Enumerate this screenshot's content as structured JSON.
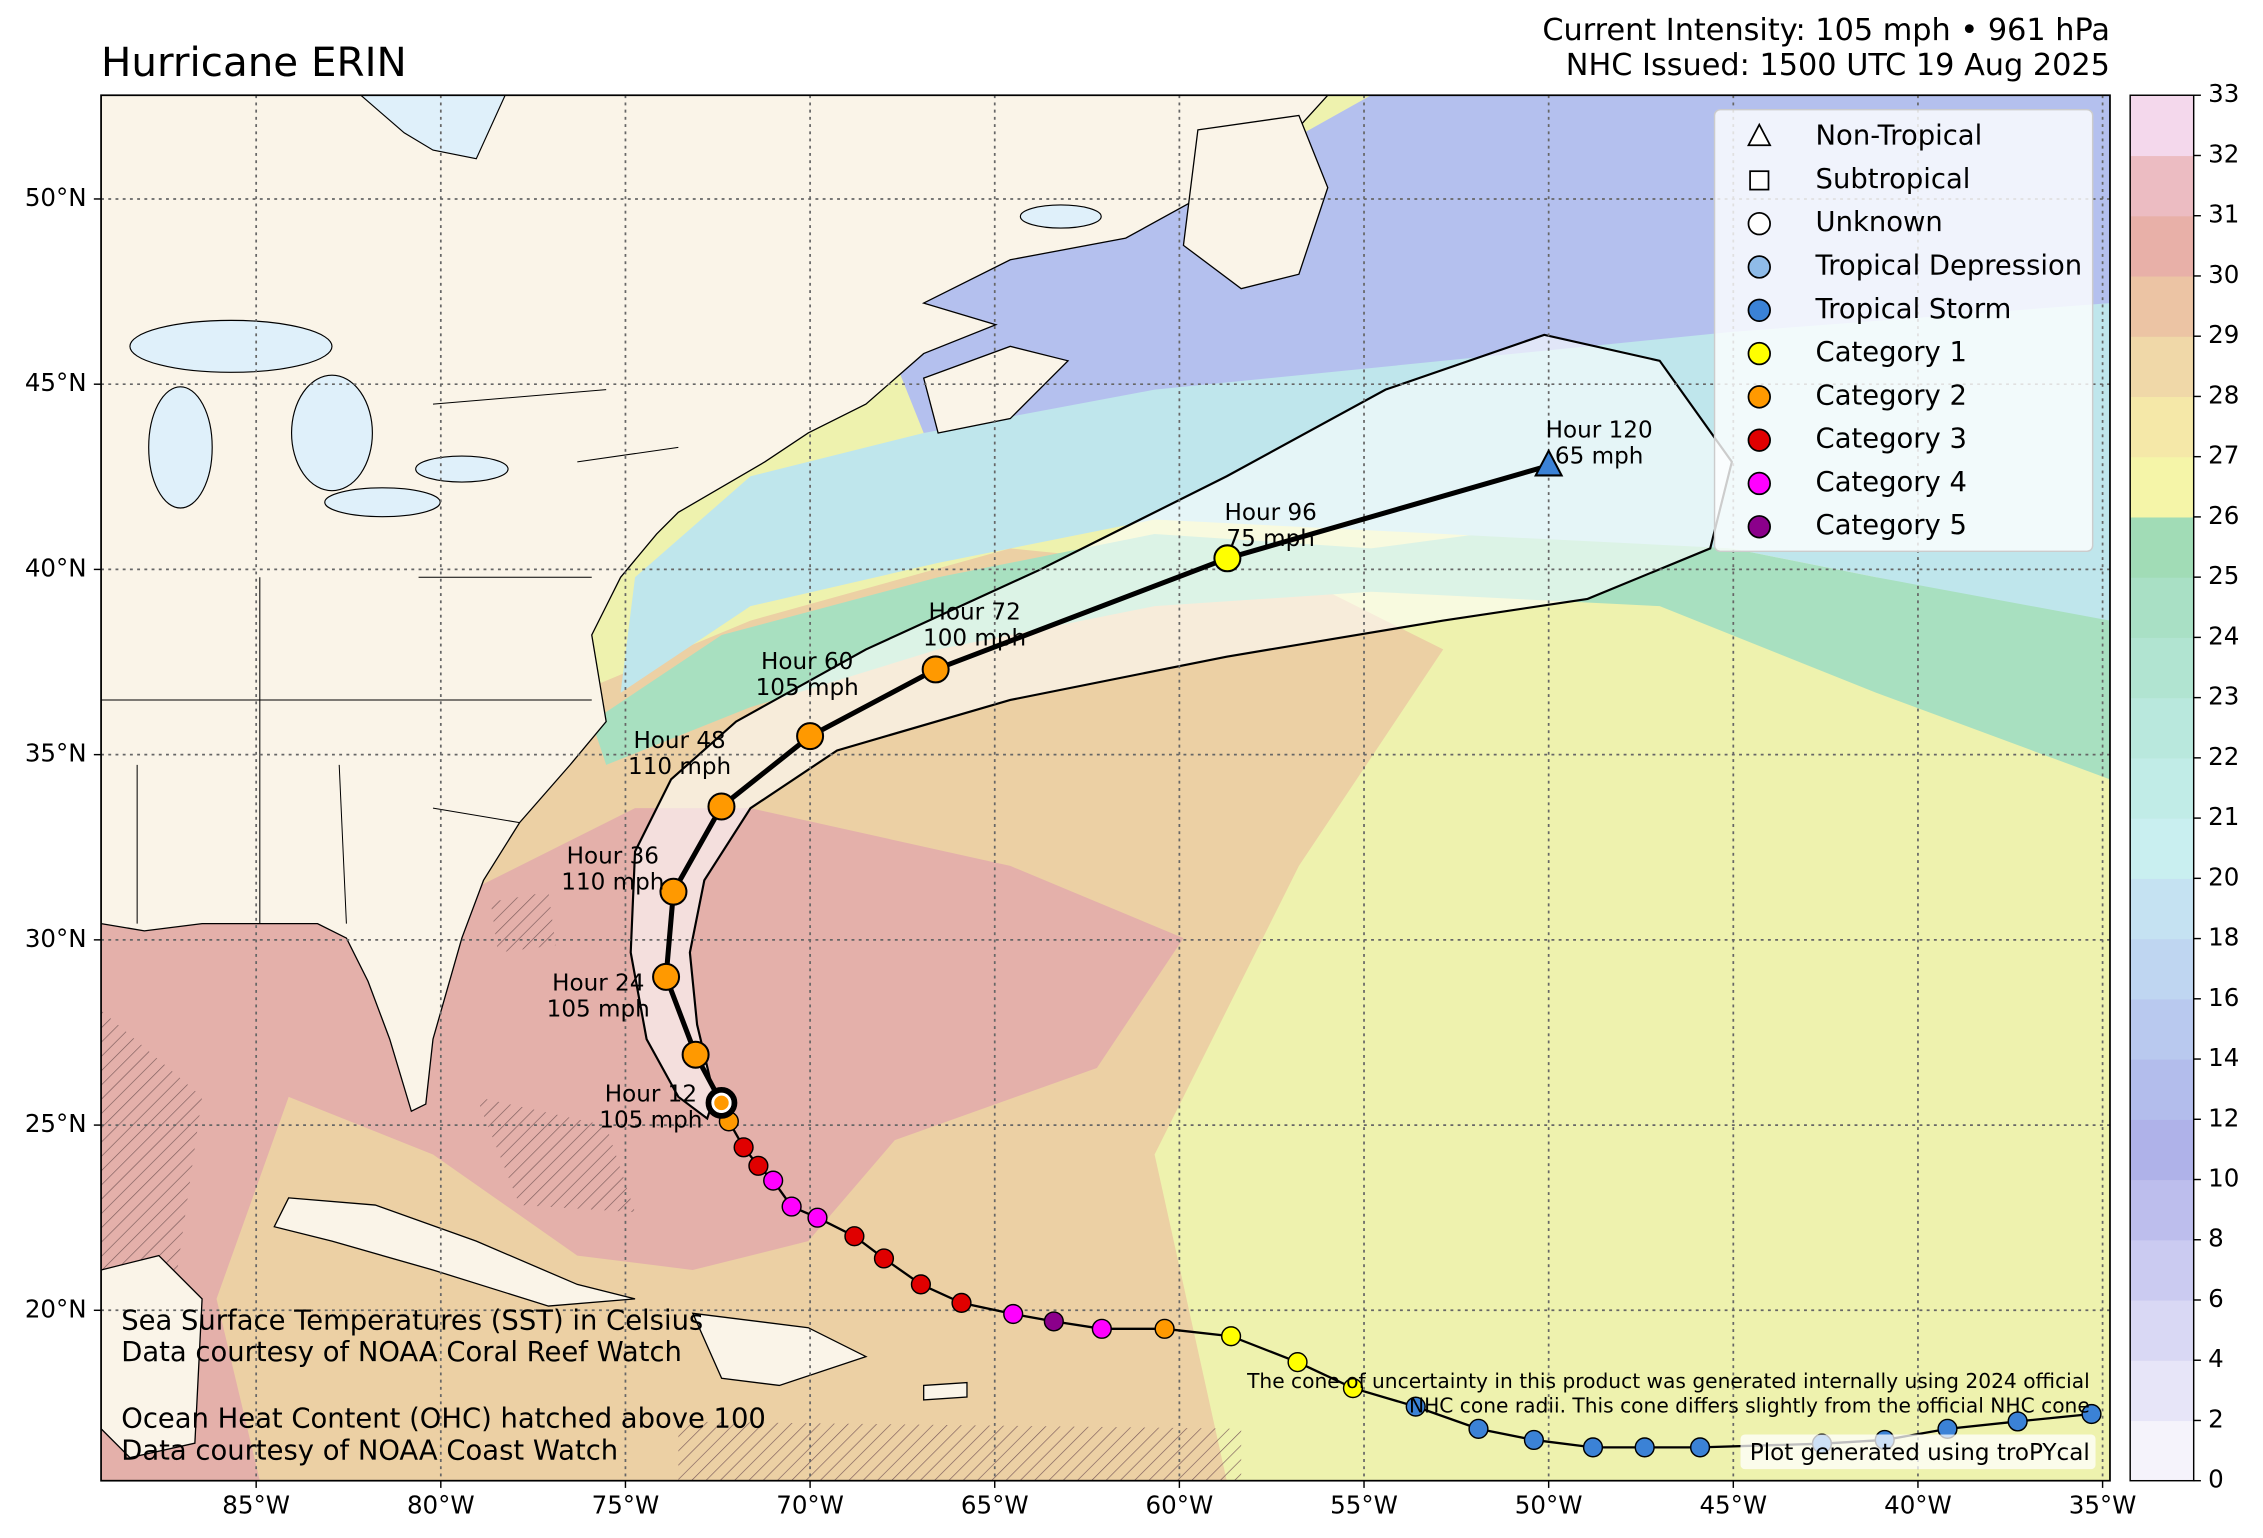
{
  "header": {
    "title": "Hurricane ERIN",
    "intensity": "Current Intensity: 105 mph • 961 hPa",
    "issued": "NHC Issued: 1500 UTC 19 Aug 2025"
  },
  "map": {
    "lon_range": [
      -89.2,
      -34.8
    ],
    "lat_range": [
      15.4,
      52.8
    ],
    "grid": true,
    "lon_ticks": [
      {
        "value": -85,
        "label": "85°W"
      },
      {
        "value": -80,
        "label": "80°W"
      },
      {
        "value": -75,
        "label": "75°W"
      },
      {
        "value": -70,
        "label": "70°W"
      },
      {
        "value": -65,
        "label": "65°W"
      },
      {
        "value": -60,
        "label": "60°W"
      },
      {
        "value": -55,
        "label": "55°W"
      },
      {
        "value": -50,
        "label": "50°W"
      },
      {
        "value": -45,
        "label": "45°W"
      },
      {
        "value": -40,
        "label": "40°W"
      },
      {
        "value": -35,
        "label": "35°W"
      }
    ],
    "lat_ticks": [
      {
        "value": 20,
        "label": "20°N"
      },
      {
        "value": 25,
        "label": "25°N"
      },
      {
        "value": 30,
        "label": "30°N"
      },
      {
        "value": 35,
        "label": "35°N"
      },
      {
        "value": 40,
        "label": "40°N"
      },
      {
        "value": 45,
        "label": "45°N"
      },
      {
        "value": 50,
        "label": "50°N"
      }
    ]
  },
  "legend": [
    {
      "label": "Non-Tropical",
      "marker": "triangle",
      "color": "#ffffff"
    },
    {
      "label": "Subtropical",
      "marker": "square",
      "color": "#ffffff"
    },
    {
      "label": "Unknown",
      "marker": "circle",
      "color": "#ffffff"
    },
    {
      "label": "Tropical Depression",
      "marker": "circle",
      "color": "#8fbbe8"
    },
    {
      "label": "Tropical Storm",
      "marker": "circle",
      "color": "#3b82d6"
    },
    {
      "label": "Category 1",
      "marker": "circle",
      "color": "#ffff00"
    },
    {
      "label": "Category 2",
      "marker": "circle",
      "color": "#ff9900"
    },
    {
      "label": "Category 3",
      "marker": "circle",
      "color": "#e00000"
    },
    {
      "label": "Category 4",
      "marker": "circle",
      "color": "#ff00ff"
    },
    {
      "label": "Category 5",
      "marker": "circle",
      "color": "#8b008b"
    }
  ],
  "past_track": [
    {
      "lon": -35.3,
      "lat": 17.2,
      "color": "#3b82d6"
    },
    {
      "lon": -37.3,
      "lat": 17.0,
      "color": "#3b82d6"
    },
    {
      "lon": -39.2,
      "lat": 16.8,
      "color": "#3b82d6"
    },
    {
      "lon": -40.9,
      "lat": 16.5,
      "color": "#3b82d6"
    },
    {
      "lon": -42.6,
      "lat": 16.4,
      "color": "#3b82d6"
    },
    {
      "lon": -45.9,
      "lat": 16.3,
      "color": "#3b82d6"
    },
    {
      "lon": -47.4,
      "lat": 16.3,
      "color": "#3b82d6"
    },
    {
      "lon": -48.8,
      "lat": 16.3,
      "color": "#3b82d6"
    },
    {
      "lon": -50.4,
      "lat": 16.5,
      "color": "#3b82d6"
    },
    {
      "lon": -51.9,
      "lat": 16.8,
      "color": "#3b82d6"
    },
    {
      "lon": -53.6,
      "lat": 17.4,
      "color": "#3b82d6"
    },
    {
      "lon": -55.3,
      "lat": 17.9,
      "color": "#ffff00"
    },
    {
      "lon": -56.8,
      "lat": 18.6,
      "color": "#ffff00"
    },
    {
      "lon": -58.6,
      "lat": 19.3,
      "color": "#ffff00"
    },
    {
      "lon": -60.4,
      "lat": 19.5,
      "color": "#ff9900"
    },
    {
      "lon": -62.1,
      "lat": 19.5,
      "color": "#ff00ff"
    },
    {
      "lon": -63.4,
      "lat": 19.7,
      "color": "#8b008b"
    },
    {
      "lon": -64.5,
      "lat": 19.9,
      "color": "#ff00ff"
    },
    {
      "lon": -65.9,
      "lat": 20.2,
      "color": "#e00000"
    },
    {
      "lon": -67.0,
      "lat": 20.7,
      "color": "#e00000"
    },
    {
      "lon": -68.0,
      "lat": 21.4,
      "color": "#e00000"
    },
    {
      "lon": -68.8,
      "lat": 22.0,
      "color": "#e00000"
    },
    {
      "lon": -69.8,
      "lat": 22.5,
      "color": "#ff00ff"
    },
    {
      "lon": -70.5,
      "lat": 22.8,
      "color": "#ff00ff"
    },
    {
      "lon": -71.0,
      "lat": 23.5,
      "color": "#ff00ff"
    },
    {
      "lon": -71.4,
      "lat": 23.9,
      "color": "#e00000"
    },
    {
      "lon": -71.8,
      "lat": 24.4,
      "color": "#e00000"
    },
    {
      "lon": -72.2,
      "lat": 25.1,
      "color": "#ff9900"
    }
  ],
  "current_position": {
    "lon": -72.4,
    "lat": 25.6,
    "color": "#ff9900"
  },
  "forecast": [
    {
      "lon": -73.1,
      "lat": 26.9,
      "color": "#ff9900",
      "marker": "circle",
      "hour": "Hour 12",
      "wind": "105 mph"
    },
    {
      "lon": -73.9,
      "lat": 29.0,
      "color": "#ff9900",
      "marker": "circle",
      "hour": "Hour 24",
      "wind": "105 mph"
    },
    {
      "lon": -73.7,
      "lat": 31.3,
      "color": "#ff9900",
      "marker": "circle",
      "hour": "Hour 36",
      "wind": "110 mph"
    },
    {
      "lon": -72.4,
      "lat": 33.6,
      "color": "#ff9900",
      "marker": "circle",
      "hour": "Hour 48",
      "wind": "110 mph"
    },
    {
      "lon": -70.0,
      "lat": 35.5,
      "color": "#ff9900",
      "marker": "circle",
      "hour": "Hour 60",
      "wind": "105 mph"
    },
    {
      "lon": -66.6,
      "lat": 37.3,
      "color": "#ff9900",
      "marker": "circle",
      "hour": "Hour 72",
      "wind": "100 mph"
    },
    {
      "lon": -58.7,
      "lat": 40.3,
      "color": "#ffff00",
      "marker": "circle",
      "hour": "Hour 96",
      "wind": "75 mph"
    },
    {
      "lon": -50.0,
      "lat": 42.8,
      "color": "#3b82d6",
      "marker": "triangle",
      "hour": "Hour 120",
      "wind": "65 mph"
    }
  ],
  "colorbar": {
    "range": [
      0,
      33
    ],
    "ticks": [
      0,
      2,
      4,
      6,
      8,
      10,
      12,
      14,
      16,
      18,
      20,
      21,
      22,
      23,
      24,
      25,
      26,
      27,
      28,
      29,
      30,
      31,
      32,
      33
    ],
    "colors": [
      "#f5f3fb",
      "#e7e5f8",
      "#d9d8f4",
      "#cbcbf1",
      "#bdbeed",
      "#afb2e9",
      "#b3bdec",
      "#b9c9ef",
      "#bfd6f1",
      "#c5e2f2",
      "#c9eff0",
      "#c1ece7",
      "#b9e8dd",
      "#b1e4d1",
      "#a9e0c5",
      "#a1dcb6",
      "#f5f5a8",
      "#f5e8a8",
      "#f0d8a8",
      "#ecc4a4",
      "#e8b0a8",
      "#ecbcc2",
      "#f4d8ec"
    ]
  },
  "annotations": {
    "sst": [
      "Sea Surface Temperatures (SST) in Celsius",
      "Data courtesy of NOAA Coral Reef Watch"
    ],
    "ohc": [
      "Ocean Heat Content (OHC) hatched above 100",
      "Data courtesy of NOAA Coast Watch"
    ],
    "cone_note": [
      "The cone of uncertainty in this product was generated internally using 2024 official",
      "NHC cone radii. This cone differs slightly from the official NHC cone"
    ],
    "credit": "Plot generated using troPYcal"
  }
}
